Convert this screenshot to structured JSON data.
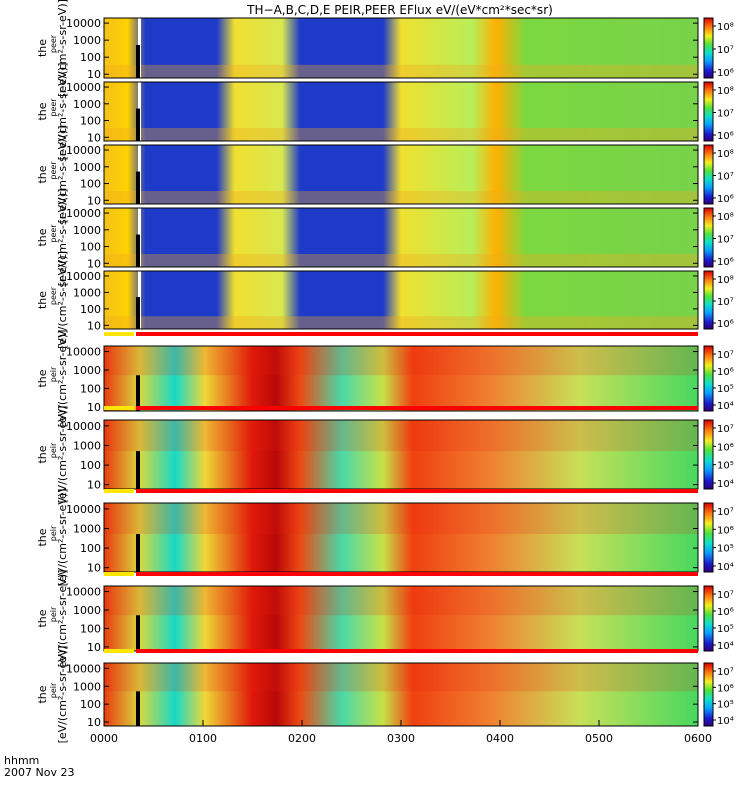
{
  "title": "TH−A,B,C,D,E PEIR,PEER EFlux eV/(eV*cm²*sec*sr)",
  "footer": {
    "label": "hhmm",
    "date": "2007 Nov 23"
  },
  "colors": {
    "bar_yellow": "#ffe600",
    "bar_red": "#ff0000",
    "marker": "#000000",
    "gap": "#ffffff"
  },
  "chart_data": {
    "type": "heatmap",
    "x_axis": {
      "label": "hhmm",
      "ticks": [
        "0000",
        "0100",
        "0200",
        "0300",
        "0400",
        "0500",
        "0600"
      ],
      "range": [
        "0000",
        "0600"
      ]
    },
    "y_axis": {
      "scale": "log",
      "ticks": [
        "10",
        "100",
        "1000",
        "10000"
      ]
    },
    "panels": [
      {
        "group": "peer",
        "ylabel_top": "the",
        "ylabel_sub": "peer",
        "ylabel_unit": "[eV/(cm²-s-sr-eV)]",
        "colorbar": {
          "scale": "log",
          "ticks": [
            "10⁸",
            "10⁷",
            "10⁶"
          ],
          "range": [
            500000,
            200000000
          ]
        }
      },
      {
        "group": "peer",
        "ylabel_top": "the",
        "ylabel_sub": "peer",
        "ylabel_unit": "[eV/(cm²-s-sr-eV)]",
        "colorbar": {
          "scale": "log",
          "ticks": [
            "10⁸",
            "10⁷",
            "10⁶"
          ],
          "range": [
            500000,
            200000000
          ]
        }
      },
      {
        "group": "peer",
        "ylabel_top": "the",
        "ylabel_sub": "peer",
        "ylabel_unit": "[eV/(cm²-s-sr-eV)]",
        "colorbar": {
          "scale": "log",
          "ticks": [
            "10⁸",
            "10⁷",
            "10⁶"
          ],
          "range": [
            500000,
            200000000
          ]
        }
      },
      {
        "group": "peer",
        "ylabel_top": "the",
        "ylabel_sub": "peer",
        "ylabel_unit": "[eV/(cm²-s-sr-eV)]",
        "colorbar": {
          "scale": "log",
          "ticks": [
            "10⁸",
            "10⁷",
            "10⁶"
          ],
          "range": [
            500000,
            200000000
          ]
        }
      },
      {
        "group": "peer",
        "ylabel_top": "the",
        "ylabel_sub": "peer",
        "ylabel_unit": "[eV/(cm²-s-sr-eV)]",
        "colorbar": {
          "scale": "log",
          "ticks": [
            "10⁸",
            "10⁷",
            "10⁶"
          ],
          "range": [
            500000,
            200000000
          ]
        }
      },
      {
        "group": "peir",
        "ylabel_top": "the",
        "ylabel_sub": "peir",
        "ylabel_unit": "[eV/(cm²-s-sr-eV)]",
        "colorbar": {
          "scale": "log",
          "ticks": [
            "10⁷",
            "10⁶",
            "10⁵",
            "10⁴"
          ],
          "range": [
            5000,
            20000000
          ]
        }
      },
      {
        "group": "peir",
        "ylabel_top": "the",
        "ylabel_sub": "peir",
        "ylabel_unit": "[eV/(cm²-s-sr-eV)]",
        "colorbar": {
          "scale": "log",
          "ticks": [
            "10⁷",
            "10⁶",
            "10⁵",
            "10⁴"
          ],
          "range": [
            5000,
            20000000
          ]
        }
      },
      {
        "group": "peir",
        "ylabel_top": "the",
        "ylabel_sub": "peir",
        "ylabel_unit": "[eV/(cm²-s-sr-eV)]",
        "colorbar": {
          "scale": "log",
          "ticks": [
            "10⁷",
            "10⁶",
            "10⁵",
            "10⁴"
          ],
          "range": [
            5000,
            20000000
          ]
        }
      },
      {
        "group": "peir",
        "ylabel_top": "the",
        "ylabel_sub": "peir",
        "ylabel_unit": "[eV/(cm²-s-sr-eV)]",
        "colorbar": {
          "scale": "log",
          "ticks": [
            "10⁷",
            "10⁶",
            "10⁵",
            "10⁴"
          ],
          "range": [
            5000,
            20000000
          ]
        }
      },
      {
        "group": "peir",
        "ylabel_top": "the",
        "ylabel_sub": "peir",
        "ylabel_unit": "[eV/(cm²-s-sr-eV)]",
        "colorbar": {
          "scale": "log",
          "ticks": [
            "10⁷",
            "10⁶",
            "10⁵",
            "10⁴"
          ],
          "range": [
            5000,
            20000000
          ]
        }
      }
    ]
  }
}
